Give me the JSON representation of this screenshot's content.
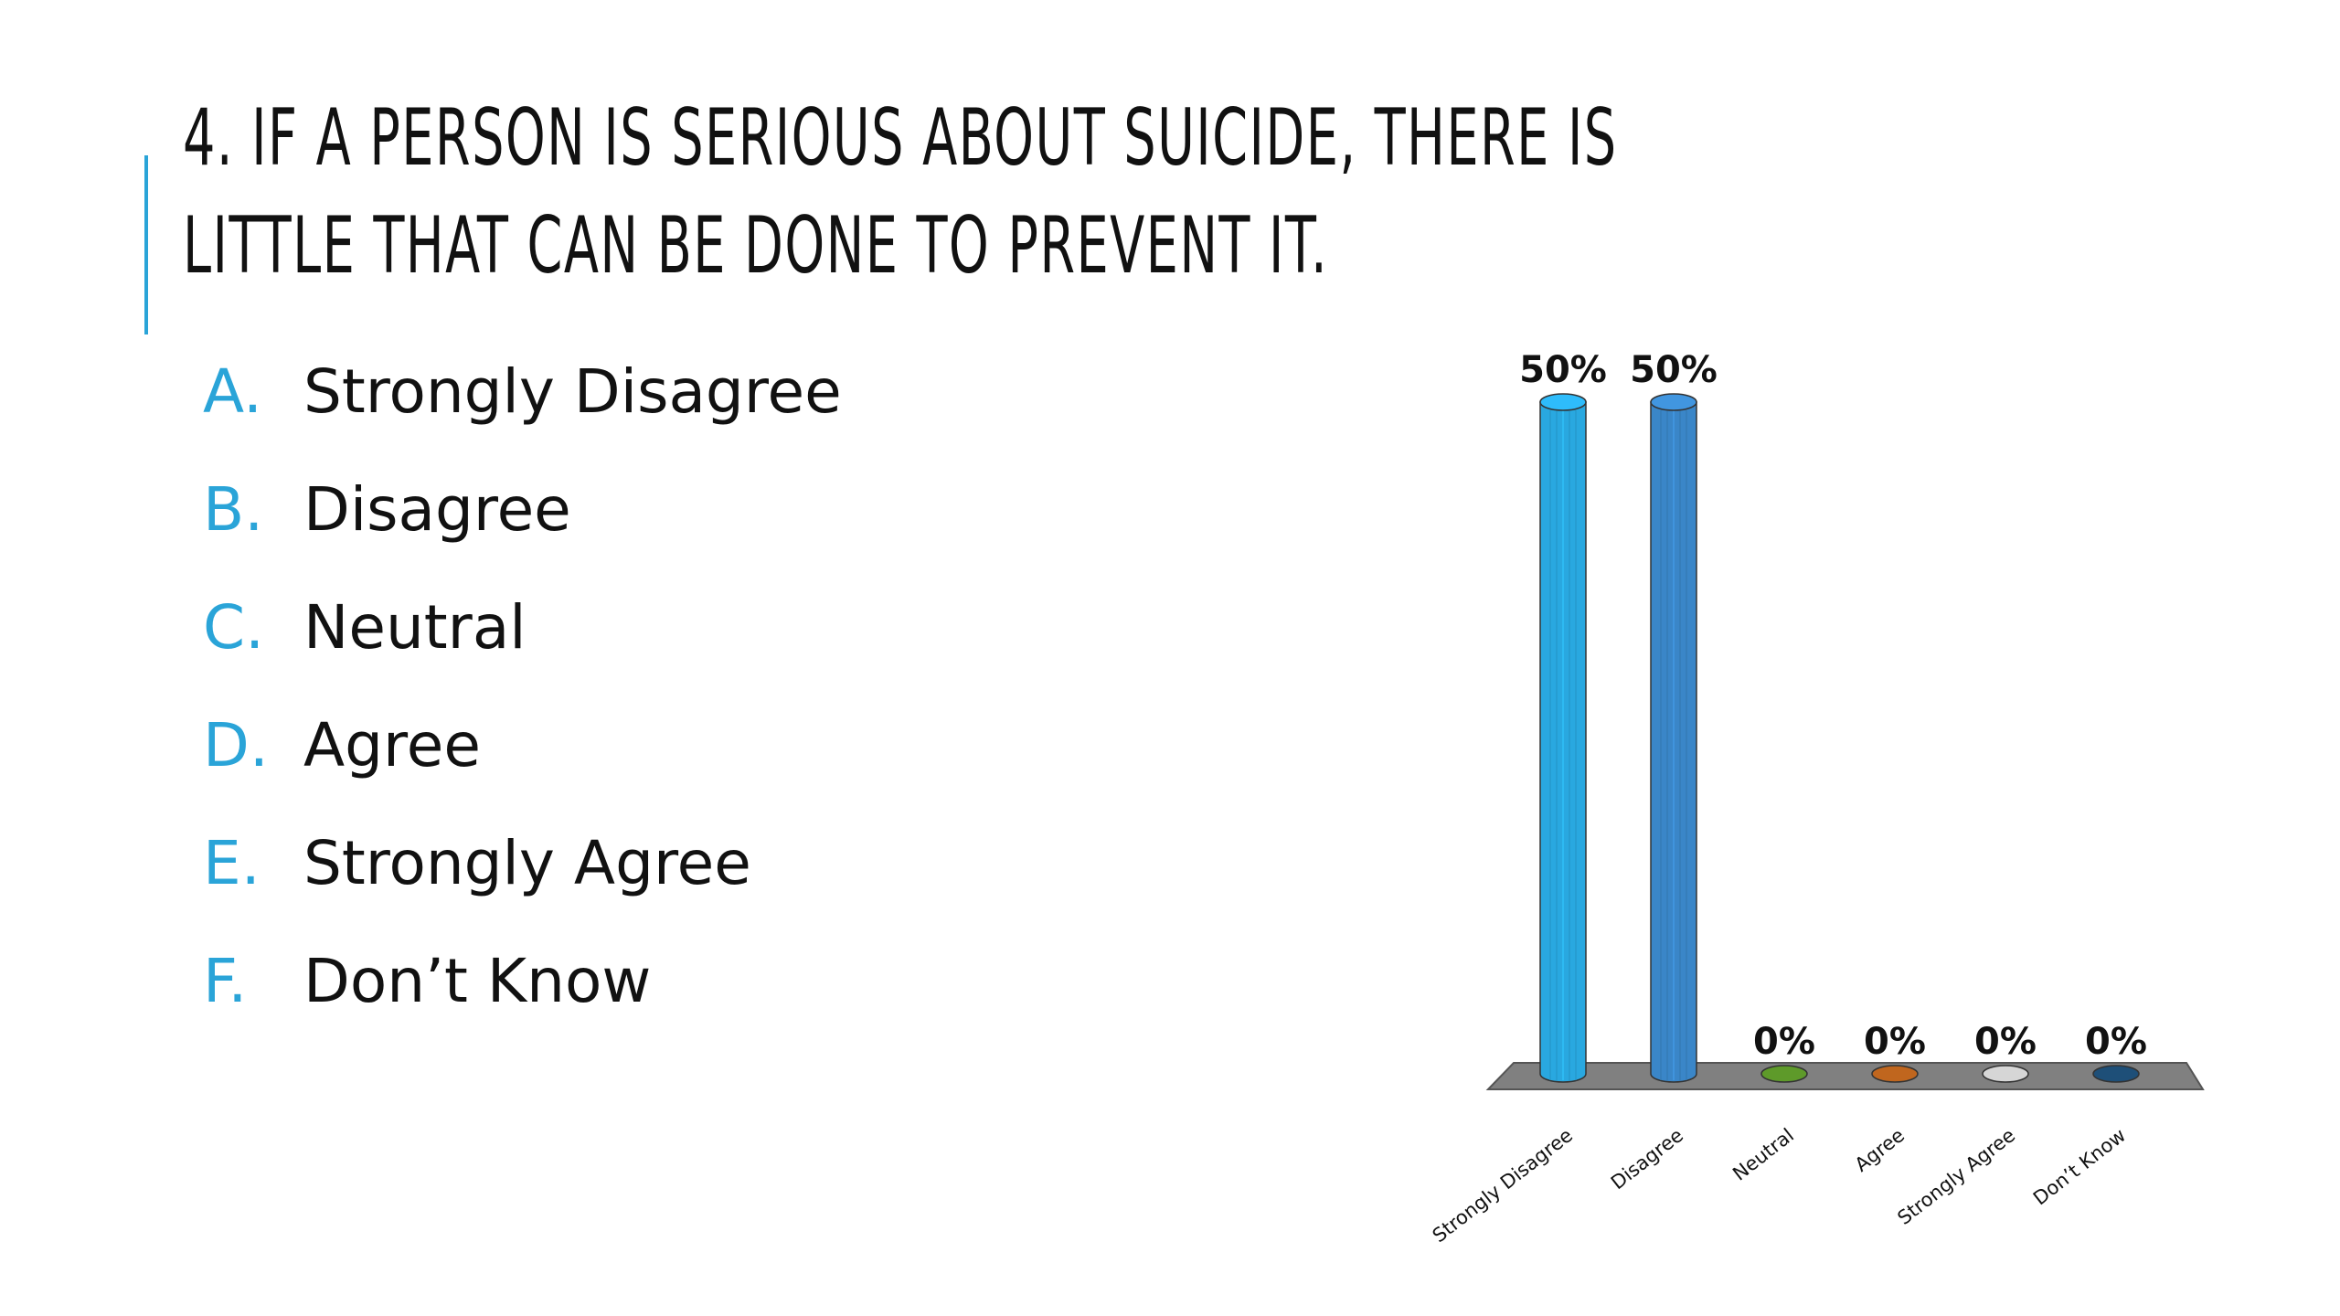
{
  "slide": {
    "title_line1": "4. IF A PERSON IS SERIOUS ABOUT SUICIDE, THERE IS",
    "title_line2": "LITTLE THAT CAN BE DONE TO PREVENT IT.",
    "accent_color": "#2aa4d8"
  },
  "options": [
    {
      "letter": "A.",
      "text": "Strongly Disagree"
    },
    {
      "letter": "B.",
      "text": "Disagree"
    },
    {
      "letter": "C.",
      "text": "Neutral"
    },
    {
      "letter": "D.",
      "text": "Agree"
    },
    {
      "letter": "E.",
      "text": "Strongly Agree"
    },
    {
      "letter": "F.",
      "text": "Don’t Know"
    }
  ],
  "chart_data": {
    "type": "bar",
    "categories": [
      "Strongly Disagree",
      "Disagree",
      "Neutral",
      "Agree",
      "Strongly Agree",
      "Don’t Know"
    ],
    "values": [
      50,
      50,
      0,
      0,
      0,
      0
    ],
    "value_labels": [
      "50%",
      "50%",
      "0%",
      "0%",
      "0%",
      "0%"
    ],
    "colors": [
      "#29a8e0",
      "#3a86c8",
      "#5e9a2a",
      "#c0661e",
      "#d6d6d6",
      "#1e4f78"
    ],
    "floor_color": "#808080",
    "ylim": [
      0,
      50
    ],
    "style": "3d-cylinder",
    "grid": false,
    "legend": "none"
  }
}
